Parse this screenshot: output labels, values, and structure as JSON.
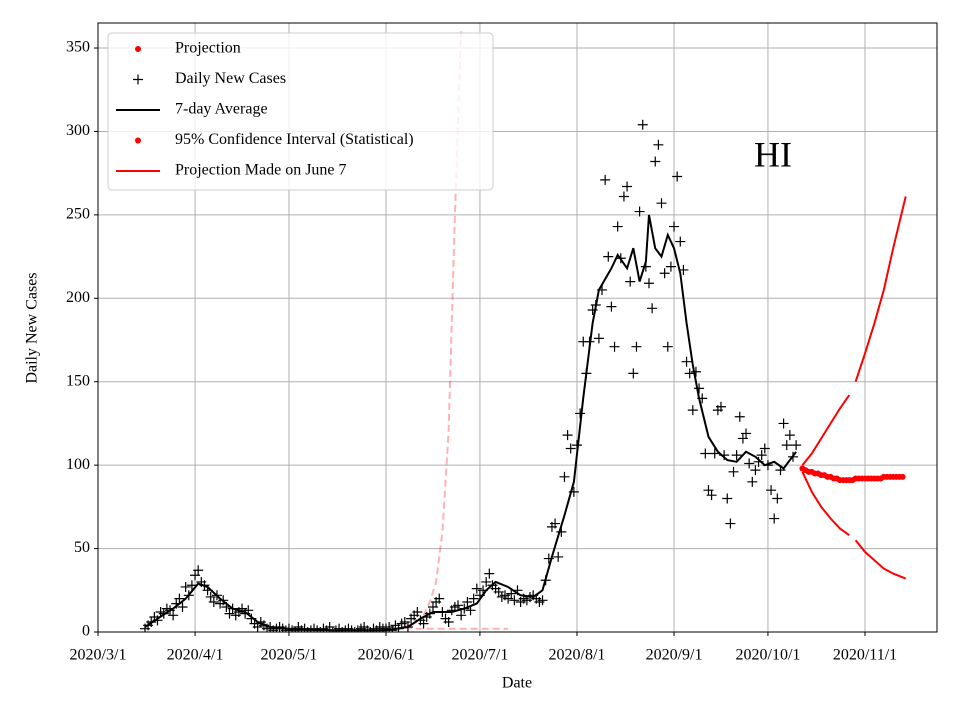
{
  "chart_data": {
    "type": "line",
    "annotation": "HI",
    "xlabel": "Date",
    "ylabel": "Daily New Cases",
    "xlim": [
      "2020/3/1",
      "2020/11/24"
    ],
    "xticks": [
      "2020/3/1",
      "2020/4/1",
      "2020/5/1",
      "2020/6/1",
      "2020/7/1",
      "2020/8/1",
      "2020/9/1",
      "2020/10/1",
      "2020/11/1"
    ],
    "ylim": [
      0,
      365
    ],
    "yticks": [
      0,
      50,
      100,
      150,
      200,
      250,
      300,
      350
    ],
    "grid": true,
    "legend": "upper left",
    "series": [
      {
        "name": "Projection",
        "color": "#ff0000",
        "marker": "dot",
        "x": [
          "2020/10/12",
          "2020/10/13",
          "2020/10/14",
          "2020/10/15",
          "2020/10/16",
          "2020/10/17",
          "2020/10/18",
          "2020/10/19",
          "2020/10/20",
          "2020/10/21",
          "2020/10/22",
          "2020/10/23",
          "2020/10/24",
          "2020/10/25",
          "2020/10/26",
          "2020/10/27",
          "2020/10/28",
          "2020/10/29",
          "2020/10/30",
          "2020/10/31",
          "2020/11/1",
          "2020/11/2",
          "2020/11/3",
          "2020/11/4",
          "2020/11/5",
          "2020/11/6",
          "2020/11/7",
          "2020/11/8",
          "2020/11/9",
          "2020/11/10",
          "2020/11/11",
          "2020/11/12",
          "2020/11/13"
        ],
        "values": [
          98,
          97,
          96,
          96,
          95,
          95,
          94,
          94,
          93,
          93,
          92,
          92,
          91,
          91,
          91,
          91,
          91,
          92,
          92,
          92,
          92,
          92,
          92,
          92,
          92,
          92,
          93,
          93,
          93,
          93,
          93,
          93,
          93
        ]
      },
      {
        "name": "Daily New Cases",
        "color": "#000000",
        "marker": "plus",
        "x": [
          "2020/3/16",
          "2020/3/17",
          "2020/3/18",
          "2020/3/19",
          "2020/3/20",
          "2020/3/21",
          "2020/3/22",
          "2020/3/23",
          "2020/3/24",
          "2020/3/25",
          "2020/3/26",
          "2020/3/27",
          "2020/3/28",
          "2020/3/29",
          "2020/3/30",
          "2020/3/31",
          "2020/4/1",
          "2020/4/2",
          "2020/4/3",
          "2020/4/4",
          "2020/4/5",
          "2020/4/6",
          "2020/4/7",
          "2020/4/8",
          "2020/4/9",
          "2020/4/10",
          "2020/4/11",
          "2020/4/12",
          "2020/4/13",
          "2020/4/14",
          "2020/4/15",
          "2020/4/16",
          "2020/4/17",
          "2020/4/18",
          "2020/4/19",
          "2020/4/20",
          "2020/4/21",
          "2020/4/22",
          "2020/4/23",
          "2020/4/24",
          "2020/4/25",
          "2020/4/26",
          "2020/4/27",
          "2020/4/28",
          "2020/4/29",
          "2020/4/30",
          "2020/5/1",
          "2020/5/2",
          "2020/5/3",
          "2020/5/4",
          "2020/5/5",
          "2020/5/6",
          "2020/5/7",
          "2020/5/8",
          "2020/5/9",
          "2020/5/10",
          "2020/5/11",
          "2020/5/12",
          "2020/5/13",
          "2020/5/14",
          "2020/5/15",
          "2020/5/16",
          "2020/5/17",
          "2020/5/18",
          "2020/5/19",
          "2020/5/20",
          "2020/5/21",
          "2020/5/22",
          "2020/5/23",
          "2020/5/24",
          "2020/5/25",
          "2020/5/26",
          "2020/5/27",
          "2020/5/28",
          "2020/5/29",
          "2020/5/30",
          "2020/5/31",
          "2020/6/1",
          "2020/6/2",
          "2020/6/3",
          "2020/6/4",
          "2020/6/5",
          "2020/6/6",
          "2020/6/7",
          "2020/6/8",
          "2020/6/9",
          "2020/6/10",
          "2020/6/11",
          "2020/6/12",
          "2020/6/13",
          "2020/6/14",
          "2020/6/15",
          "2020/6/16",
          "2020/6/17",
          "2020/6/18",
          "2020/6/19",
          "2020/6/20",
          "2020/6/21",
          "2020/6/22",
          "2020/6/23",
          "2020/6/24",
          "2020/6/25",
          "2020/6/26",
          "2020/6/27",
          "2020/6/28",
          "2020/6/29",
          "2020/6/30",
          "2020/7/1",
          "2020/7/2",
          "2020/7/3",
          "2020/7/4",
          "2020/7/5",
          "2020/7/6",
          "2020/7/7",
          "2020/7/8",
          "2020/7/9",
          "2020/7/10",
          "2020/7/11",
          "2020/7/12",
          "2020/7/13",
          "2020/7/14",
          "2020/7/15",
          "2020/7/16",
          "2020/7/17",
          "2020/7/18",
          "2020/7/19",
          "2020/7/20",
          "2020/7/21",
          "2020/7/22",
          "2020/7/23",
          "2020/7/24",
          "2020/7/25",
          "2020/7/26",
          "2020/7/27",
          "2020/7/28",
          "2020/7/29",
          "2020/7/30",
          "2020/7/31",
          "2020/8/1",
          "2020/8/2",
          "2020/8/3",
          "2020/8/4",
          "2020/8/5",
          "2020/8/6",
          "2020/8/7",
          "2020/8/8",
          "2020/8/9",
          "2020/8/10",
          "2020/8/11",
          "2020/8/12",
          "2020/8/13",
          "2020/8/14",
          "2020/8/15",
          "2020/8/16",
          "2020/8/17",
          "2020/8/18",
          "2020/8/19",
          "2020/8/20",
          "2020/8/21",
          "2020/8/22",
          "2020/8/23",
          "2020/8/24",
          "2020/8/25",
          "2020/8/26",
          "2020/8/27",
          "2020/8/28",
          "2020/8/29",
          "2020/8/30",
          "2020/8/31",
          "2020/9/1",
          "2020/9/2",
          "2020/9/3",
          "2020/9/4",
          "2020/9/5",
          "2020/9/6",
          "2020/9/7",
          "2020/9/8",
          "2020/9/9",
          "2020/9/10",
          "2020/9/11",
          "2020/9/12",
          "2020/9/13",
          "2020/9/14",
          "2020/9/15",
          "2020/9/16",
          "2020/9/17",
          "2020/9/18",
          "2020/9/19",
          "2020/9/20",
          "2020/9/21",
          "2020/9/22",
          "2020/9/23",
          "2020/9/24",
          "2020/9/25",
          "2020/9/26",
          "2020/9/27",
          "2020/9/28",
          "2020/9/29",
          "2020/9/30",
          "2020/10/1",
          "2020/10/2",
          "2020/10/3",
          "2020/10/4",
          "2020/10/5",
          "2020/10/6",
          "2020/10/7",
          "2020/10/8",
          "2020/10/9",
          "2020/10/10"
        ],
        "values": [
          2,
          4,
          6,
          9,
          7,
          12,
          11,
          14,
          13,
          10,
          17,
          20,
          15,
          27,
          22,
          28,
          34,
          37,
          30,
          28,
          25,
          21,
          18,
          22,
          17,
          19,
          15,
          11,
          14,
          10,
          12,
          14,
          11,
          13,
          8,
          5,
          3,
          6,
          4,
          2,
          3,
          1,
          2,
          3,
          2,
          1,
          2,
          1,
          0,
          3,
          1,
          2,
          0,
          1,
          2,
          1,
          0,
          2,
          1,
          3,
          0,
          1,
          2,
          0,
          1,
          2,
          1,
          0,
          1,
          2,
          3,
          1,
          0,
          2,
          1,
          3,
          2,
          2,
          3,
          1,
          4,
          2,
          5,
          6,
          3,
          8,
          10,
          12,
          7,
          5,
          9,
          11,
          15,
          18,
          20,
          12,
          8,
          6,
          13,
          15,
          16,
          10,
          14,
          18,
          13,
          20,
          26,
          22,
          25,
          30,
          35,
          28,
          26,
          24,
          21,
          22,
          20,
          23,
          19,
          25,
          18,
          20,
          19,
          21,
          22,
          20,
          18,
          19,
          31,
          44,
          63,
          65,
          45,
          60,
          93,
          118,
          110,
          84,
          112,
          131,
          174,
          155,
          174,
          193,
          196,
          176,
          205,
          271,
          225,
          195,
          171,
          243,
          224,
          261,
          267,
          210,
          155,
          171,
          252,
          304,
          219,
          209,
          194,
          282,
          292,
          257,
          215,
          171,
          219,
          243,
          273,
          234,
          217,
          162,
          155,
          133,
          156,
          146,
          140,
          107,
          85,
          82,
          107,
          133,
          135,
          106,
          80,
          65,
          96,
          106,
          129,
          116,
          119,
          101,
          90,
          97,
          102,
          106,
          110,
          100,
          85,
          68,
          80,
          97,
          125,
          112,
          118,
          105,
          112
        ]
      },
      {
        "name": "7-day Average",
        "color": "#000000",
        "marker": "line",
        "x": [
          "2020/3/16",
          "2020/3/20",
          "2020/3/25",
          "2020/3/29",
          "2020/4/2",
          "2020/4/5",
          "2020/4/9",
          "2020/4/13",
          "2020/4/17",
          "2020/4/21",
          "2020/4/25",
          "2020/5/1",
          "2020/5/15",
          "2020/6/1",
          "2020/6/8",
          "2020/6/12",
          "2020/6/16",
          "2020/6/22",
          "2020/6/26",
          "2020/6/30",
          "2020/7/3",
          "2020/7/6",
          "2020/7/10",
          "2020/7/14",
          "2020/7/18",
          "2020/7/21",
          "2020/7/24",
          "2020/7/28",
          "2020/7/31",
          "2020/8/3",
          "2020/8/6",
          "2020/8/8",
          "2020/8/12",
          "2020/8/14",
          "2020/8/17",
          "2020/8/19",
          "2020/8/21",
          "2020/8/23",
          "2020/8/24",
          "2020/8/26",
          "2020/8/28",
          "2020/8/30",
          "2020/9/1",
          "2020/9/3",
          "2020/9/5",
          "2020/9/7",
          "2020/9/9",
          "2020/9/12",
          "2020/9/15",
          "2020/9/18",
          "2020/9/21",
          "2020/9/24",
          "2020/9/27",
          "2020/9/30",
          "2020/10/3",
          "2020/10/6",
          "2020/10/10"
        ],
        "values": [
          3,
          8,
          14,
          20,
          29,
          27,
          20,
          14,
          12,
          6,
          3,
          2,
          1,
          1,
          3,
          8,
          12,
          12,
          14,
          17,
          25,
          30,
          27,
          22,
          21,
          25,
          45,
          70,
          90,
          140,
          185,
          205,
          218,
          226,
          218,
          230,
          210,
          222,
          250,
          230,
          225,
          238,
          230,
          215,
          185,
          160,
          140,
          117,
          108,
          103,
          102,
          108,
          105,
          100,
          102,
          98,
          108
        ]
      },
      {
        "name": "95% Confidence Interval (Statistical)",
        "color": "#ff0000",
        "marker": "dot",
        "x": [
          "2020/10/12",
          "2020/10/15",
          "2020/10/18",
          "2020/10/21",
          "2020/10/24",
          "2020/10/27",
          "2020/10/28",
          "2020/10/29",
          "2020/11/1",
          "2020/11/4",
          "2020/11/7",
          "2020/11/10",
          "2020/11/14"
        ],
        "upper": [
          100,
          107,
          116,
          125,
          134,
          142,
          null,
          150,
          167,
          185,
          205,
          230,
          261
        ],
        "lower": [
          96,
          84,
          75,
          68,
          62,
          58,
          null,
          55,
          48,
          43,
          38,
          35,
          32
        ]
      },
      {
        "name": "Projection Made on June 7",
        "color": "#ff0000",
        "marker": "line",
        "alpha": 0.3,
        "dashed": true,
        "x": [
          "2020/6/7",
          "2020/6/10",
          "2020/6/13",
          "2020/6/15",
          "2020/6/17",
          "2020/6/19",
          "2020/6/21",
          "2020/6/23",
          "2020/6/25",
          "2020/7/1",
          "2020/7/10"
        ],
        "upper": [
          3,
          5,
          10,
          18,
          30,
          60,
          120,
          250,
          360,
          null,
          null
        ],
        "lower": [
          3,
          2,
          2,
          2,
          2,
          2,
          2,
          2,
          2,
          2,
          2
        ]
      }
    ]
  }
}
